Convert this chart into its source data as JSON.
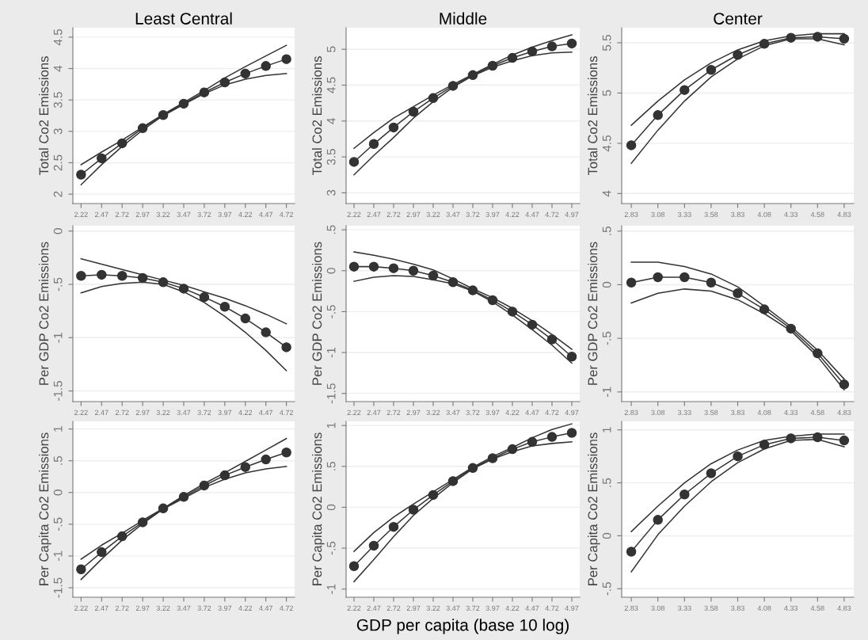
{
  "chart_data": [
    {
      "type": "line",
      "title": "Least Central",
      "ylabel": "Total Co2 Emissions",
      "x": [
        2.22,
        2.47,
        2.72,
        2.97,
        3.22,
        3.47,
        3.72,
        3.97,
        4.22,
        4.47,
        4.72
      ],
      "xlim": [
        2.12,
        4.82
      ],
      "xticks": [
        {
          "value": 2.22,
          "label": "2.22"
        },
        {
          "value": 2.47,
          "label": "2.47"
        },
        {
          "value": 2.72,
          "label": "2.72"
        },
        {
          "value": 2.97,
          "label": "2.97"
        },
        {
          "value": 3.22,
          "label": "3.22"
        },
        {
          "value": 3.47,
          "label": "3.47"
        },
        {
          "value": 3.72,
          "label": "3.72"
        },
        {
          "value": 3.97,
          "label": "3.97"
        },
        {
          "value": 4.22,
          "label": "4.22"
        },
        {
          "value": 4.47,
          "label": "4.47"
        },
        {
          "value": 4.72,
          "label": "4.72"
        }
      ],
      "ylim": [
        1.85,
        4.65
      ],
      "yticks": [
        2,
        2.5,
        3,
        3.5,
        4,
        4.5
      ],
      "grid": "y",
      "marker": "circle",
      "line_style": "solid",
      "series": [
        {
          "color": "#333333",
          "values": [
            2.31,
            2.57,
            2.81,
            3.05,
            3.26,
            3.44,
            3.62,
            3.78,
            3.92,
            4.04,
            4.15
          ]
        },
        {
          "color": "#333333",
          "marker": "none",
          "values": [
            2.47,
            2.67,
            2.86,
            3.07,
            3.27,
            3.46,
            3.65,
            3.85,
            4.03,
            4.2,
            4.37
          ]
        },
        {
          "color": "#333333",
          "marker": "none",
          "values": [
            2.15,
            2.47,
            2.76,
            3.02,
            3.25,
            3.43,
            3.6,
            3.74,
            3.83,
            3.89,
            3.92
          ]
        }
      ]
    },
    {
      "type": "line",
      "title": "Middle",
      "ylabel": "Total Co2 Emissions",
      "x": [
        2.22,
        2.47,
        2.72,
        2.97,
        3.22,
        3.47,
        3.72,
        3.97,
        4.22,
        4.47,
        4.72,
        4.97
      ],
      "xlim": [
        2.12,
        5.07
      ],
      "xticks": [
        {
          "value": 2.22,
          "label": "2.22"
        },
        {
          "value": 2.47,
          "label": "2.47"
        },
        {
          "value": 2.72,
          "label": "2.72"
        },
        {
          "value": 2.97,
          "label": "2.97"
        },
        {
          "value": 3.22,
          "label": "3.22"
        },
        {
          "value": 3.47,
          "label": "3.47"
        },
        {
          "value": 3.72,
          "label": "3.72"
        },
        {
          "value": 3.97,
          "label": "3.97"
        },
        {
          "value": 4.22,
          "label": "4.22"
        },
        {
          "value": 4.47,
          "label": "4.47"
        },
        {
          "value": 4.72,
          "label": "4.72"
        },
        {
          "value": 4.97,
          "label": "4.97"
        }
      ],
      "ylim": [
        2.85,
        5.3
      ],
      "yticks": [
        3,
        3.5,
        4,
        4.5,
        5
      ],
      "grid": "y",
      "marker": "circle",
      "line_style": "solid",
      "series": [
        {
          "color": "#333333",
          "values": [
            3.43,
            3.68,
            3.91,
            4.13,
            4.32,
            4.49,
            4.64,
            4.77,
            4.88,
            4.97,
            5.04,
            5.08
          ]
        },
        {
          "color": "#333333",
          "marker": "none",
          "values": [
            3.62,
            3.84,
            4.04,
            4.2,
            4.36,
            4.51,
            4.65,
            4.79,
            4.92,
            5.03,
            5.12,
            5.2
          ]
        },
        {
          "color": "#333333",
          "marker": "none",
          "values": [
            3.25,
            3.52,
            3.77,
            4.04,
            4.27,
            4.47,
            4.63,
            4.75,
            4.84,
            4.91,
            4.95,
            4.96
          ]
        }
      ]
    },
    {
      "type": "line",
      "title": "Center",
      "ylabel": "Total Co2 Emissions",
      "x": [
        2.83,
        3.08,
        3.33,
        3.58,
        3.83,
        4.08,
        4.33,
        4.58,
        4.83
      ],
      "xlim": [
        2.74,
        4.92
      ],
      "xticks": [
        {
          "value": 2.83,
          "label": "2.83"
        },
        {
          "value": 3.08,
          "label": "3.08"
        },
        {
          "value": 3.33,
          "label": "3.33"
        },
        {
          "value": 3.58,
          "label": "3.58"
        },
        {
          "value": 3.83,
          "label": "3.83"
        },
        {
          "value": 4.08,
          "label": "4.08"
        },
        {
          "value": 4.33,
          "label": "4.33"
        },
        {
          "value": 4.58,
          "label": "4.58"
        },
        {
          "value": 4.83,
          "label": "4.83"
        }
      ],
      "ylim": [
        3.9,
        5.65
      ],
      "yticks": [
        4,
        4.5,
        5,
        5.5
      ],
      "grid": "y",
      "marker": "circle",
      "line_style": "solid",
      "series": [
        {
          "color": "#333333",
          "values": [
            4.48,
            4.78,
            5.03,
            5.23,
            5.38,
            5.49,
            5.55,
            5.56,
            5.54
          ]
        },
        {
          "color": "#333333",
          "marker": "none",
          "values": [
            4.68,
            4.92,
            5.13,
            5.3,
            5.43,
            5.52,
            5.57,
            5.59,
            5.59
          ]
        },
        {
          "color": "#333333",
          "marker": "none",
          "values": [
            4.3,
            4.63,
            4.92,
            5.16,
            5.34,
            5.47,
            5.54,
            5.54,
            5.48
          ]
        }
      ]
    },
    {
      "type": "line",
      "ylabel": "Per GDP Co2 Emissions",
      "x": [
        2.22,
        2.47,
        2.72,
        2.97,
        3.22,
        3.47,
        3.72,
        3.97,
        4.22,
        4.47,
        4.72
      ],
      "xlim": [
        2.12,
        4.82
      ],
      "xticks": [
        {
          "value": 2.22,
          "label": "2.22"
        },
        {
          "value": 2.47,
          "label": "2.47"
        },
        {
          "value": 2.72,
          "label": "2.72"
        },
        {
          "value": 2.97,
          "label": "2.97"
        },
        {
          "value": 3.22,
          "label": "3.22"
        },
        {
          "value": 3.47,
          "label": "3.47"
        },
        {
          "value": 3.72,
          "label": "3.72"
        },
        {
          "value": 3.97,
          "label": "3.97"
        },
        {
          "value": 4.22,
          "label": "4.22"
        },
        {
          "value": 4.47,
          "label": "4.47"
        },
        {
          "value": 4.72,
          "label": "4.72"
        }
      ],
      "ylim": [
        -1.6,
        0.05
      ],
      "yticks": [
        {
          "value": -1.5,
          "label": "-1.5"
        },
        {
          "value": -1,
          "label": "-1"
        },
        {
          "value": -0.5,
          "label": "-.5"
        },
        0
      ],
      "grid": "y",
      "marker": "circle",
      "line_style": "solid",
      "series": [
        {
          "color": "#333333",
          "values": [
            -0.42,
            -0.41,
            -0.42,
            -0.44,
            -0.48,
            -0.54,
            -0.62,
            -0.71,
            -0.82,
            -0.95,
            -1.09
          ]
        },
        {
          "color": "#333333",
          "marker": "none",
          "values": [
            -0.26,
            -0.31,
            -0.36,
            -0.41,
            -0.46,
            -0.51,
            -0.57,
            -0.63,
            -0.7,
            -0.78,
            -0.87
          ]
        },
        {
          "color": "#333333",
          "marker": "none",
          "values": [
            -0.58,
            -0.52,
            -0.49,
            -0.48,
            -0.5,
            -0.57,
            -0.67,
            -0.8,
            -0.95,
            -1.12,
            -1.31
          ]
        }
      ]
    },
    {
      "type": "line",
      "ylabel": "Per GDP Co2 Emissions",
      "x": [
        2.22,
        2.47,
        2.72,
        2.97,
        3.22,
        3.47,
        3.72,
        3.97,
        4.22,
        4.47,
        4.72,
        4.97
      ],
      "xlim": [
        2.12,
        5.07
      ],
      "xticks": [
        {
          "value": 2.22,
          "label": "2.22"
        },
        {
          "value": 2.47,
          "label": "2.47"
        },
        {
          "value": 2.72,
          "label": "2.72"
        },
        {
          "value": 2.97,
          "label": "2.97"
        },
        {
          "value": 3.22,
          "label": "3.22"
        },
        {
          "value": 3.47,
          "label": "3.47"
        },
        {
          "value": 3.72,
          "label": "3.72"
        },
        {
          "value": 3.97,
          "label": "3.97"
        },
        {
          "value": 4.22,
          "label": "4.22"
        },
        {
          "value": 4.47,
          "label": "4.47"
        },
        {
          "value": 4.72,
          "label": "4.72"
        },
        {
          "value": 4.97,
          "label": "4.97"
        }
      ],
      "ylim": [
        -1.6,
        0.55
      ],
      "yticks": [
        {
          "value": -1.5,
          "label": "-1.5"
        },
        {
          "value": -1,
          "label": "-1"
        },
        {
          "value": -0.5,
          "label": "-.5"
        },
        0,
        {
          "value": 0.5,
          "label": ".5"
        }
      ],
      "grid": "y",
      "marker": "circle",
      "line_style": "solid",
      "series": [
        {
          "color": "#333333",
          "values": [
            0.05,
            0.05,
            0.03,
            0,
            -0.06,
            -0.14,
            -0.24,
            -0.36,
            -0.5,
            -0.66,
            -0.84,
            -1.05
          ]
        },
        {
          "color": "#333333",
          "marker": "none",
          "values": [
            0.23,
            0.19,
            0.14,
            0.08,
            0.01,
            -0.1,
            -0.22,
            -0.33,
            -0.46,
            -0.61,
            -0.78,
            -0.96
          ]
        },
        {
          "color": "#333333",
          "marker": "none",
          "values": [
            -0.13,
            -0.08,
            -0.06,
            -0.07,
            -0.11,
            -0.16,
            -0.25,
            -0.38,
            -0.54,
            -0.72,
            -0.91,
            -1.13
          ]
        }
      ]
    },
    {
      "type": "line",
      "ylabel": "Per GDP Co2 Emissions",
      "x": [
        2.83,
        3.08,
        3.33,
        3.58,
        3.83,
        4.08,
        4.33,
        4.58,
        4.83
      ],
      "xlim": [
        2.74,
        4.92
      ],
      "xticks": [
        {
          "value": 2.83,
          "label": "2.83"
        },
        {
          "value": 3.08,
          "label": "3.08"
        },
        {
          "value": 3.33,
          "label": "3.33"
        },
        {
          "value": 3.58,
          "label": "3.58"
        },
        {
          "value": 3.83,
          "label": "3.83"
        },
        {
          "value": 4.08,
          "label": "4.08"
        },
        {
          "value": 4.33,
          "label": "4.33"
        },
        {
          "value": 4.58,
          "label": "4.58"
        },
        {
          "value": 4.83,
          "label": "4.83"
        }
      ],
      "ylim": [
        -1.09,
        0.55
      ],
      "yticks": [
        {
          "value": -1,
          "label": "-1"
        },
        {
          "value": -0.5,
          "label": "-.5"
        },
        0,
        {
          "value": 0.5,
          "label": ".5"
        }
      ],
      "grid": "y",
      "marker": "circle",
      "line_style": "solid",
      "series": [
        {
          "color": "#333333",
          "values": [
            0.02,
            0.07,
            0.07,
            0.02,
            -0.08,
            -0.23,
            -0.41,
            -0.64,
            -0.93
          ]
        },
        {
          "color": "#333333",
          "marker": "none",
          "values": [
            0.21,
            0.21,
            0.17,
            0.1,
            -0.02,
            -0.2,
            -0.39,
            -0.61,
            -0.88
          ]
        },
        {
          "color": "#333333",
          "marker": "none",
          "values": [
            -0.17,
            -0.08,
            -0.04,
            -0.06,
            -0.14,
            -0.27,
            -0.43,
            -0.67,
            -0.98
          ]
        }
      ]
    },
    {
      "type": "line",
      "ylabel": "Per Capita Co2 Emissions",
      "x": [
        2.22,
        2.47,
        2.72,
        2.97,
        3.22,
        3.47,
        3.72,
        3.97,
        4.22,
        4.47,
        4.72
      ],
      "xlim": [
        2.12,
        4.82
      ],
      "xticks": [
        {
          "value": 2.22,
          "label": "2.22"
        },
        {
          "value": 2.47,
          "label": "2.47"
        },
        {
          "value": 2.72,
          "label": "2.72"
        },
        {
          "value": 2.97,
          "label": "2.97"
        },
        {
          "value": 3.22,
          "label": "3.22"
        },
        {
          "value": 3.47,
          "label": "3.47"
        },
        {
          "value": 3.72,
          "label": "3.72"
        },
        {
          "value": 3.97,
          "label": "3.97"
        },
        {
          "value": 4.22,
          "label": "4.22"
        },
        {
          "value": 4.47,
          "label": "4.47"
        },
        {
          "value": 4.72,
          "label": "4.72"
        }
      ],
      "ylim": [
        -1.65,
        1.12
      ],
      "yticks": [
        {
          "value": -1.5,
          "label": "-1.5"
        },
        {
          "value": -1,
          "label": "-1"
        },
        {
          "value": -0.5,
          "label": "-.5"
        },
        0,
        {
          "value": 0.5,
          "label": ".5"
        },
        1
      ],
      "grid": "y",
      "marker": "circle",
      "line_style": "solid",
      "series": [
        {
          "color": "#333333",
          "values": [
            -1.21,
            -0.94,
            -0.69,
            -0.47,
            -0.25,
            -0.07,
            0.11,
            0.27,
            0.4,
            0.52,
            0.63
          ]
        },
        {
          "color": "#333333",
          "marker": "none",
          "values": [
            -1.05,
            -0.83,
            -0.64,
            -0.44,
            -0.25,
            -0.05,
            0.14,
            0.31,
            0.49,
            0.67,
            0.85
          ]
        },
        {
          "color": "#333333",
          "marker": "none",
          "values": [
            -1.37,
            -1.05,
            -0.75,
            -0.49,
            -0.26,
            -0.09,
            0.08,
            0.21,
            0.31,
            0.37,
            0.41
          ]
        }
      ]
    },
    {
      "type": "line",
      "ylabel": "Per Capita Co2 Emissions",
      "xlabel": "GDP per capita (base 10 log)",
      "x": [
        2.22,
        2.47,
        2.72,
        2.97,
        3.22,
        3.47,
        3.72,
        3.97,
        4.22,
        4.47,
        4.72,
        4.97
      ],
      "xlim": [
        2.12,
        5.07
      ],
      "xticks": [
        {
          "value": 2.22,
          "label": "2.22"
        },
        {
          "value": 2.47,
          "label": "2.47"
        },
        {
          "value": 2.72,
          "label": "2.72"
        },
        {
          "value": 2.97,
          "label": "2.97"
        },
        {
          "value": 3.22,
          "label": "3.22"
        },
        {
          "value": 3.47,
          "label": "3.47"
        },
        {
          "value": 3.72,
          "label": "3.72"
        },
        {
          "value": 3.97,
          "label": "3.97"
        },
        {
          "value": 4.22,
          "label": "4.22"
        },
        {
          "value": 4.47,
          "label": "4.47"
        },
        {
          "value": 4.72,
          "label": "4.72"
        },
        {
          "value": 4.97,
          "label": "4.97"
        }
      ],
      "ylim": [
        -1.1,
        1.05
      ],
      "yticks": [
        {
          "value": -1,
          "label": "-1"
        },
        {
          "value": -0.5,
          "label": "-.5"
        },
        0,
        {
          "value": 0.5,
          "label": ".5"
        },
        1
      ],
      "grid": "y",
      "marker": "circle",
      "line_style": "solid",
      "series": [
        {
          "color": "#333333",
          "values": [
            -0.72,
            -0.47,
            -0.24,
            -0.03,
            0.15,
            0.32,
            0.48,
            0.6,
            0.71,
            0.8,
            0.86,
            0.91
          ]
        },
        {
          "color": "#333333",
          "marker": "none",
          "values": [
            -0.54,
            -0.31,
            -0.12,
            0.04,
            0.19,
            0.34,
            0.49,
            0.62,
            0.73,
            0.85,
            0.95,
            1.02
          ]
        },
        {
          "color": "#333333",
          "marker": "none",
          "values": [
            -0.91,
            -0.64,
            -0.36,
            -0.1,
            0.11,
            0.3,
            0.47,
            0.59,
            0.68,
            0.75,
            0.78,
            0.8
          ]
        }
      ]
    },
    {
      "type": "line",
      "ylabel": "Per Capita Co2 Emissions",
      "x": [
        2.83,
        3.08,
        3.33,
        3.58,
        3.83,
        4.08,
        4.33,
        4.58,
        4.83
      ],
      "xlim": [
        2.74,
        4.92
      ],
      "xticks": [
        {
          "value": 2.83,
          "label": "2.83"
        },
        {
          "value": 3.08,
          "label": "3.08"
        },
        {
          "value": 3.33,
          "label": "3.33"
        },
        {
          "value": 3.58,
          "label": "3.58"
        },
        {
          "value": 3.83,
          "label": "3.83"
        },
        {
          "value": 4.08,
          "label": "4.08"
        },
        {
          "value": 4.33,
          "label": "4.33"
        },
        {
          "value": 4.58,
          "label": "4.58"
        },
        {
          "value": 4.83,
          "label": "4.83"
        }
      ],
      "ylim": [
        -0.58,
        1.08
      ],
      "yticks": [
        {
          "value": -0.5,
          "label": "-.5"
        },
        0,
        {
          "value": 0.5,
          "label": ".5"
        },
        1
      ],
      "grid": "y",
      "marker": "circle",
      "line_style": "solid",
      "series": [
        {
          "color": "#333333",
          "values": [
            -0.15,
            0.15,
            0.39,
            0.59,
            0.75,
            0.86,
            0.92,
            0.93,
            0.9
          ]
        },
        {
          "color": "#333333",
          "marker": "none",
          "values": [
            0.04,
            0.28,
            0.5,
            0.68,
            0.81,
            0.9,
            0.94,
            0.96,
            0.96
          ]
        },
        {
          "color": "#333333",
          "marker": "none",
          "values": [
            -0.34,
            0.01,
            0.28,
            0.51,
            0.69,
            0.82,
            0.9,
            0.91,
            0.84
          ]
        }
      ]
    }
  ]
}
